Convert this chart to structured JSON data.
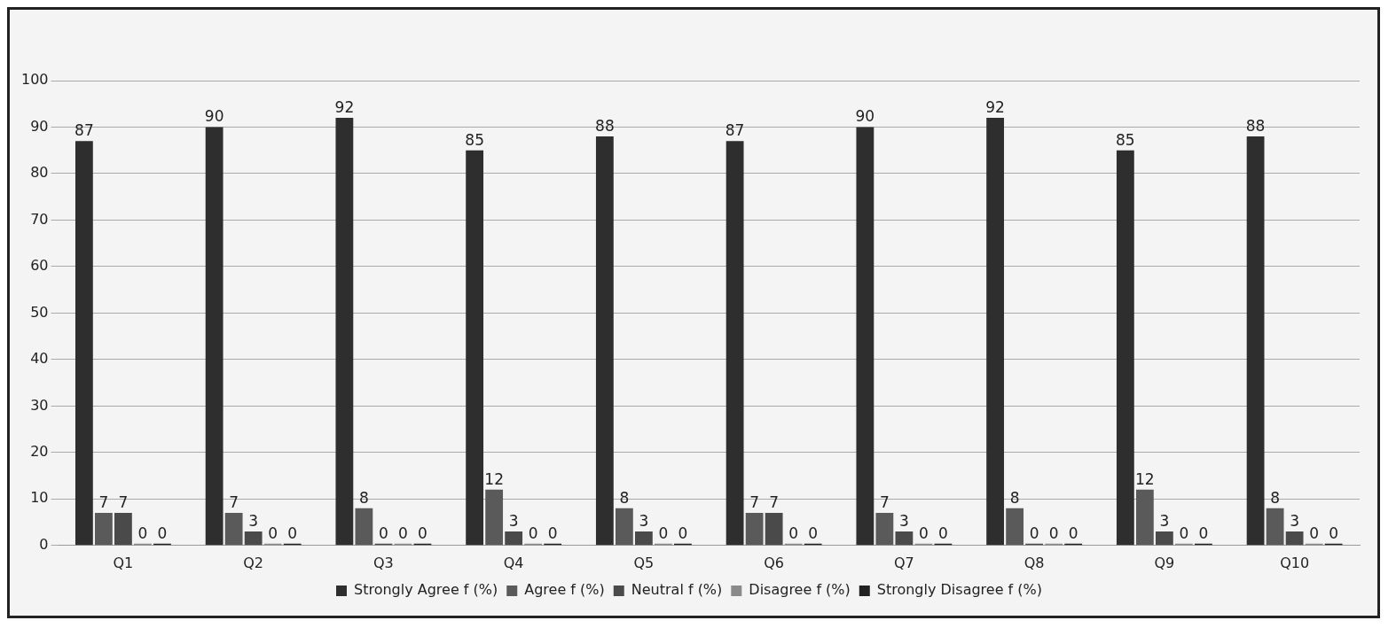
{
  "chart_data": {
    "type": "bar",
    "categories": [
      "Q1",
      "Q2",
      "Q3",
      "Q4",
      "Q5",
      "Q6",
      "Q7",
      "Q8",
      "Q9",
      "Q10"
    ],
    "series": [
      {
        "name": "Strongly Agree f (%)",
        "color": "#2e2e2e",
        "values": [
          87,
          90,
          92,
          85,
          88,
          87,
          90,
          92,
          85,
          88
        ]
      },
      {
        "name": "Agree f (%)",
        "color": "#5a5a5a",
        "values": [
          7,
          7,
          8,
          12,
          8,
          7,
          7,
          8,
          12,
          8
        ]
      },
      {
        "name": "Neutral f (%)",
        "color": "#4a4a4a",
        "values": [
          7,
          3,
          0,
          3,
          3,
          7,
          3,
          0,
          3,
          3
        ]
      },
      {
        "name": "Disagree f (%)",
        "color": "#8a8a8a",
        "values": [
          0,
          0,
          0,
          0,
          0,
          0,
          0,
          0,
          0,
          0
        ]
      },
      {
        "name": "Strongly Disagree f (%)",
        "color": "#222222",
        "values": [
          0,
          0,
          0,
          0,
          0,
          0,
          0,
          0,
          0,
          0
        ]
      }
    ],
    "ylim": [
      0,
      100
    ],
    "yticks": [
      0,
      10,
      20,
      30,
      40,
      50,
      60,
      70,
      80,
      90,
      100
    ],
    "grid": "y",
    "legend": "bottom",
    "data_labels": true
  }
}
